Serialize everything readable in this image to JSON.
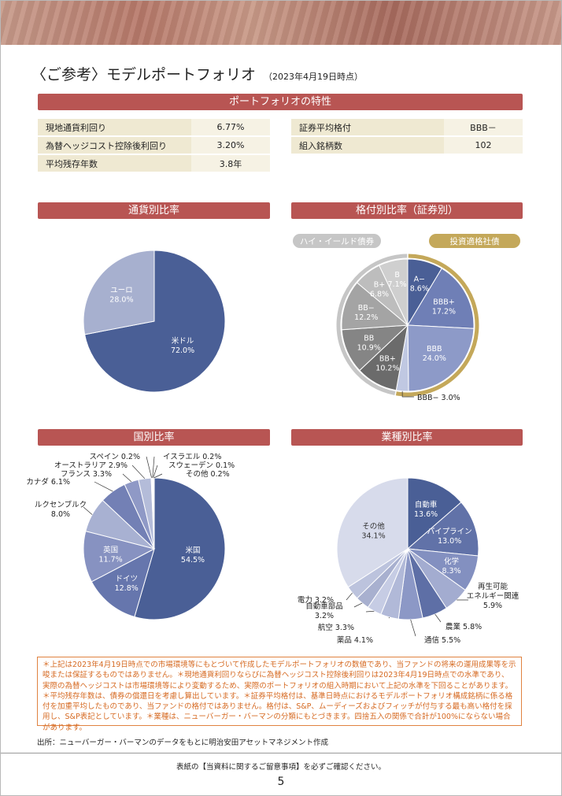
{
  "header": {
    "title": "〈ご参考〉モデルポートフォリオ",
    "date": "（2023年4月19日時点）"
  },
  "sections": {
    "characteristics": "ポートフォリオの特性",
    "currency": "通貨別比率",
    "rating": "格付別比率（証券別）",
    "country": "国別比率",
    "industry": "業種別比率"
  },
  "characteristics": {
    "left": [
      {
        "label": "現地通貨利回り",
        "value": "6.77%"
      },
      {
        "label": "為替ヘッジコスト控除後利回り",
        "value": "3.20%"
      },
      {
        "label": "平均残存年数",
        "value": "3.8年"
      }
    ],
    "right": [
      {
        "label": "証券平均格付",
        "value": "BBB－"
      },
      {
        "label": "組入銘柄数",
        "value": "102"
      }
    ]
  },
  "rating_groups": {
    "high_yield": "ハイ・イールド債券",
    "investment_grade": "投資適格社債"
  },
  "chart_data": [
    {
      "type": "pie",
      "title": "通貨別比率",
      "categories": [
        "米ドル",
        "ユーロ"
      ],
      "values": [
        72.0,
        28.0
      ],
      "labels": [
        "72.0%",
        "28.0%"
      ],
      "colors": [
        "#4a5f96",
        "#a7b0cf"
      ]
    },
    {
      "type": "pie",
      "title": "格付別比率（証券別）",
      "categories": [
        "A−",
        "BBB+",
        "BBB",
        "BBB−",
        "BB+",
        "BB",
        "BB−",
        "B+",
        "B"
      ],
      "values": [
        8.6,
        17.2,
        24.0,
        3.0,
        10.2,
        10.9,
        12.2,
        6.8,
        7.1
      ],
      "labels": [
        "8.6%",
        "17.2%",
        "24.0%",
        "3.0%",
        "10.2%",
        "10.9%",
        "12.2%",
        "6.8%",
        "7.1%"
      ],
      "colors": [
        "#4a5f96",
        "#6f7fb6",
        "#8d9ac8",
        "#c0c8e2",
        "#6b6b6b",
        "#858585",
        "#a4a4a4",
        "#bdbdbd",
        "#cfcfcf"
      ],
      "groups": [
        {
          "name": "投資適格社債",
          "color": "#c4a85a"
        },
        {
          "name": "ハイ・イールド債券",
          "color": "#c6c6c6"
        }
      ]
    },
    {
      "type": "pie",
      "title": "国別比率",
      "categories": [
        "米国",
        "ドイツ",
        "英国",
        "ルクセンブルク",
        "カナダ",
        "フランス",
        "オーストラリア",
        "スペイン",
        "イスラエル",
        "スウェーデン",
        "その他"
      ],
      "values": [
        54.5,
        12.8,
        11.7,
        8.0,
        6.1,
        3.3,
        2.9,
        0.2,
        0.2,
        0.1,
        0.2
      ],
      "labels": [
        "54.5%",
        "12.8%",
        "11.7%",
        "8.0%",
        "6.1%",
        "3.3%",
        "2.9%",
        "0.2%",
        "0.2%",
        "0.1%",
        "0.2%"
      ],
      "colors": [
        "#4a5f96",
        "#6676ad",
        "#8792c1",
        "#a8b1d2",
        "#7380b5",
        "#8f99c6",
        "#b4bcd9",
        "#cbd1e6",
        "#d7dcec",
        "#e3e6f1",
        "#eef0f6"
      ]
    },
    {
      "type": "pie",
      "title": "業種別比率",
      "categories": [
        "自動車",
        "パイプライン",
        "化学",
        "再生可能エネルギー関連",
        "農業",
        "通信",
        "薬品",
        "航空",
        "自動車部品",
        "電力",
        "その他"
      ],
      "values": [
        13.6,
        13.0,
        8.3,
        5.9,
        5.8,
        5.5,
        4.1,
        3.3,
        3.2,
        3.2,
        34.1
      ],
      "labels": [
        "13.6%",
        "13.0%",
        "8.3%",
        "5.9%",
        "5.8%",
        "5.5%",
        "4.1%",
        "3.3%",
        "3.2%",
        "3.2%",
        "34.1%"
      ],
      "colors": [
        "#4a5f96",
        "#6172a8",
        "#8390c0",
        "#a3acd0",
        "#5e6fa6",
        "#8c98c6",
        "#b1b9d8",
        "#c6cce4",
        "#a8b0cf",
        "#bcc3dd",
        "#d7dbeb"
      ]
    }
  ],
  "note": "＊上記は2023年4月19日時点での市場環境等にもとづいて作成したモデルポートフォリオの数値であり、当ファンドの将来の運用成果等を示唆または保証するものではありません。＊現地通貨利回りならびに為替ヘッジコスト控除後利回りは2023年4月19日時点での水準であり、実際の為替ヘッジコストは市場環境等により変動するため、実際のポートフォリオの組入時期において上記の水準を下回ることがあります。＊平均残存年数は、債券の償還日を考慮し算出しています。＊証券平均格付は、基準日時点におけるモデルポートフォリオ構成銘柄に係る格付を加重平均したものであり、当ファンドの格付ではありません。格付は、S&P、ムーディーズおよびフィッチが付与する最も高い格付を採用し、S&P表記としています。＊業種は、ニューバーガー・バーマンの分類にもとづきます。四捨五入の関係で合計が100%にならない場合があります。",
  "source": "出所：ニューバーガー・バーマンのデータをもとに明治安田アセットマネジメント作成",
  "footer": "表紙の【当資料に関するご留意事項】を必ずご確認ください。",
  "page_number": "5"
}
